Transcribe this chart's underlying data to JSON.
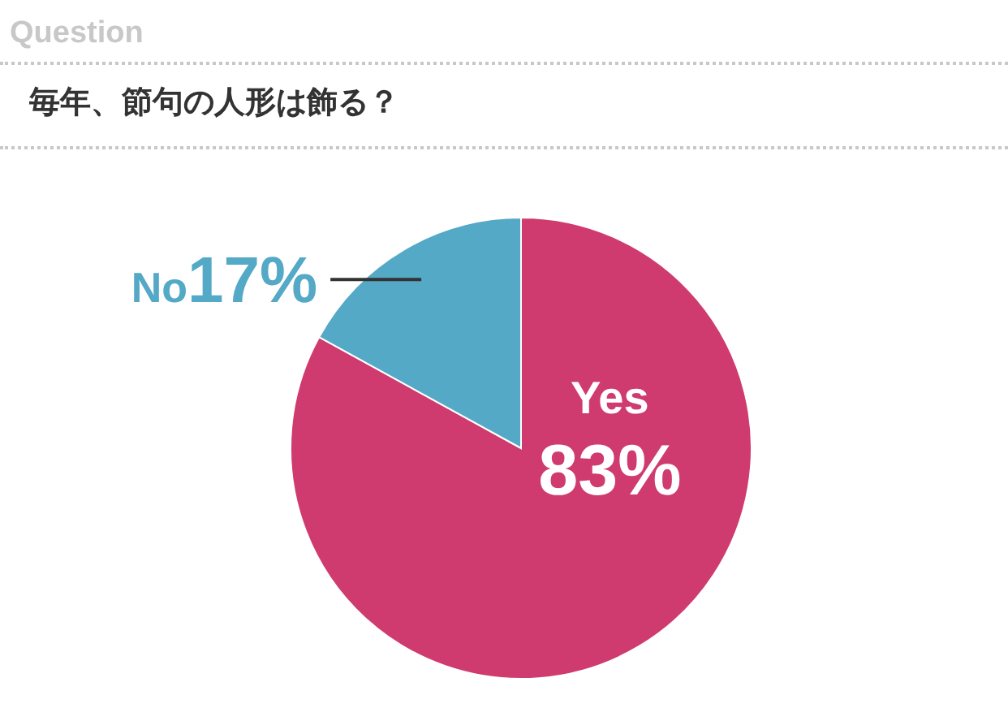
{
  "chart_data": {
    "type": "pie",
    "title": "毎年、節句の人形は飾る？",
    "annotations": [
      "Question"
    ],
    "categories": [
      "Yes",
      "No"
    ],
    "values": [
      83,
      17
    ],
    "colors": [
      "#cf3b6e",
      "#53a9c6"
    ],
    "value_labels": [
      "83%",
      "17%"
    ],
    "legend": false
  }
}
